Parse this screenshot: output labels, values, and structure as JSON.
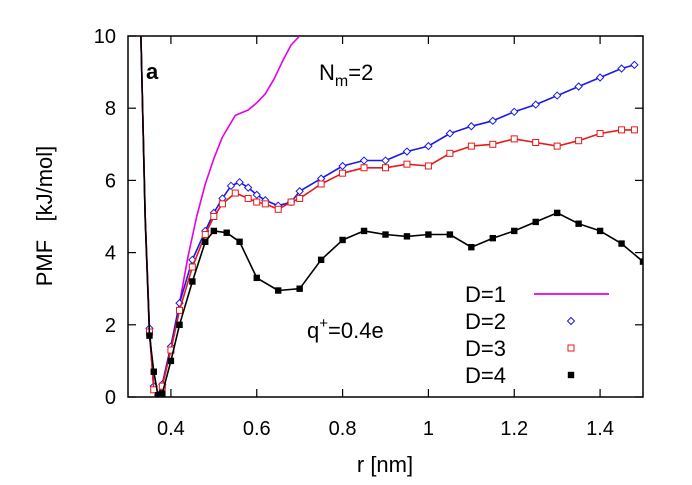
{
  "chart_data": {
    "type": "line",
    "panel_label": "a",
    "xlabel": "r [nm]",
    "ylabel": "PMF   [kJ/mol]",
    "xlim": [
      0.3,
      1.5
    ],
    "ylim": [
      0,
      10
    ],
    "xticks": [
      "0.4",
      "0.6",
      "0.8",
      "1",
      "1.2",
      "1.4"
    ],
    "yticks": [
      "0",
      "2",
      "4",
      "6",
      "8",
      "10"
    ],
    "grid": false,
    "legend_position": "bottom-right",
    "annotations": {
      "nm_main": "N",
      "nm_sub": "m",
      "nm_value": "=2",
      "q_main": "q",
      "q_sup": "+",
      "q_value": "=0.4e"
    },
    "series": [
      {
        "name": "D=1",
        "color": "#e600e6",
        "marker": "none",
        "x": [
          0.33,
          0.34,
          0.35,
          0.36,
          0.37,
          0.38,
          0.39,
          0.4,
          0.42,
          0.44,
          0.46,
          0.48,
          0.5,
          0.52,
          0.55,
          0.58,
          0.6,
          0.62,
          0.64,
          0.66,
          0.68,
          0.7
        ],
        "y": [
          10.0,
          5.0,
          1.8,
          0.2,
          0.05,
          0.35,
          0.9,
          1.4,
          2.6,
          3.9,
          5.0,
          5.9,
          6.6,
          7.2,
          7.8,
          7.95,
          8.15,
          8.4,
          8.8,
          9.3,
          9.75,
          10.0
        ]
      },
      {
        "name": "D=2",
        "color": "#1a1ae6",
        "marker": "diamond-open",
        "x": [
          0.33,
          0.34,
          0.35,
          0.36,
          0.37,
          0.38,
          0.4,
          0.42,
          0.45,
          0.48,
          0.5,
          0.52,
          0.54,
          0.56,
          0.58,
          0.6,
          0.62,
          0.65,
          0.68,
          0.7,
          0.75,
          0.8,
          0.85,
          0.9,
          0.95,
          1.0,
          1.05,
          1.1,
          1.15,
          1.2,
          1.25,
          1.3,
          1.35,
          1.4,
          1.45,
          1.48
        ],
        "y": [
          10.0,
          5.0,
          1.9,
          0.3,
          0.05,
          0.35,
          1.4,
          2.6,
          3.8,
          4.6,
          5.1,
          5.5,
          5.85,
          5.95,
          5.8,
          5.6,
          5.45,
          5.3,
          5.4,
          5.7,
          6.05,
          6.4,
          6.55,
          6.55,
          6.8,
          6.95,
          7.3,
          7.5,
          7.65,
          7.9,
          8.1,
          8.35,
          8.6,
          8.85,
          9.1,
          9.2
        ]
      },
      {
        "name": "D=3",
        "color": "#e61a1a",
        "marker": "square-open",
        "x": [
          0.33,
          0.34,
          0.35,
          0.36,
          0.37,
          0.38,
          0.4,
          0.42,
          0.45,
          0.48,
          0.5,
          0.52,
          0.55,
          0.58,
          0.6,
          0.62,
          0.65,
          0.68,
          0.7,
          0.75,
          0.8,
          0.85,
          0.9,
          0.95,
          1.0,
          1.05,
          1.1,
          1.15,
          1.2,
          1.25,
          1.3,
          1.35,
          1.4,
          1.45,
          1.48
        ],
        "y": [
          10.0,
          5.0,
          1.8,
          0.2,
          0.02,
          0.3,
          1.3,
          2.4,
          3.6,
          4.5,
          5.0,
          5.35,
          5.65,
          5.5,
          5.4,
          5.35,
          5.2,
          5.4,
          5.5,
          5.9,
          6.2,
          6.35,
          6.35,
          6.45,
          6.4,
          6.75,
          6.95,
          7.0,
          7.15,
          7.05,
          6.95,
          7.1,
          7.3,
          7.4,
          7.4
        ]
      },
      {
        "name": "D=4",
        "color": "#000000",
        "marker": "square-filled",
        "x": [
          0.33,
          0.34,
          0.35,
          0.36,
          0.37,
          0.38,
          0.4,
          0.42,
          0.45,
          0.48,
          0.5,
          0.53,
          0.56,
          0.6,
          0.65,
          0.7,
          0.75,
          0.8,
          0.85,
          0.9,
          0.95,
          1.0,
          1.05,
          1.1,
          1.15,
          1.2,
          1.25,
          1.3,
          1.35,
          1.4,
          1.45,
          1.5
        ],
        "y": [
          10.0,
          4.9,
          1.7,
          0.7,
          0.05,
          0.1,
          1.0,
          2.0,
          3.2,
          4.3,
          4.6,
          4.55,
          4.3,
          3.3,
          2.95,
          3.0,
          3.8,
          4.35,
          4.6,
          4.5,
          4.45,
          4.5,
          4.5,
          4.15,
          4.4,
          4.6,
          4.85,
          5.1,
          4.8,
          4.6,
          4.25,
          3.75
        ]
      }
    ]
  }
}
